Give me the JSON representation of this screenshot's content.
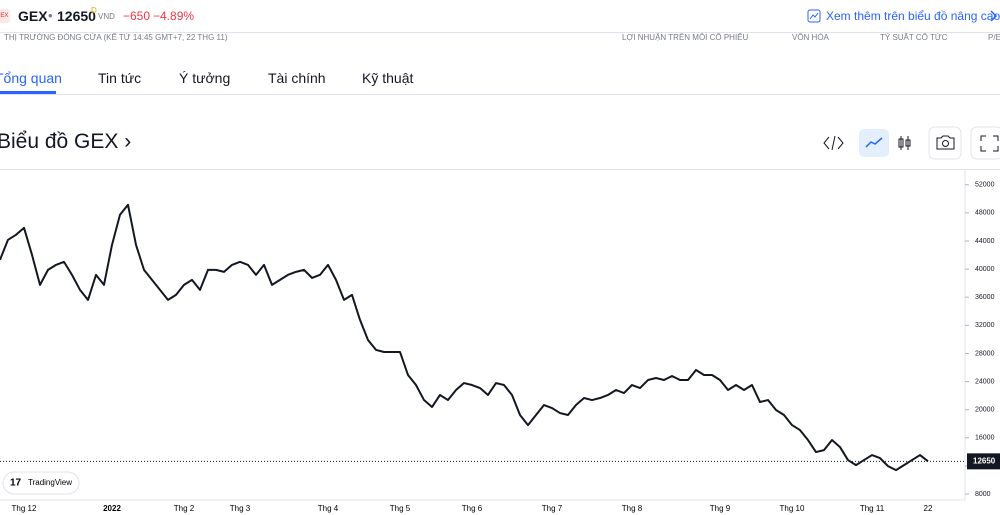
{
  "header": {
    "logo": "GEX",
    "symbol": "GEX",
    "dot": "•",
    "price": "12650",
    "price_sup": "D",
    "currency": "VND",
    "change": "−650",
    "change_pct": "−4.89%",
    "link": "Xem thêm trên biểu đồ nâng cao",
    "status": "THỊ TRƯỜNG ĐÓNG CỬA (KỂ TỪ 14:45 GMT+7, 22 THG 11)",
    "stats": [
      "LỢI NHUẬN TRÊN MỖI CỔ PHIẾU",
      "VỐN HÓA",
      "TỶ SUẤT CỔ TỨC",
      "P/E"
    ]
  },
  "tabs": [
    "Tổng quan",
    "Tin tức",
    "Ý tưởng",
    "Tài chính",
    "Kỹ thuật"
  ],
  "section_title": "Biểu đồ GEX ›",
  "badge": "TradingView",
  "chart_data": {
    "type": "line",
    "color": "#131722",
    "categories": [
      null,
      null,
      null,
      "Thg 12",
      null,
      null,
      null,
      null,
      null,
      null,
      null,
      null,
      null,
      null,
      "2022",
      null,
      null,
      null,
      null,
      null,
      null,
      null,
      null,
      "Thg 2",
      null,
      null,
      null,
      null,
      null,
      null,
      "Thg 3",
      null,
      null,
      null,
      null,
      null,
      null,
      null,
      null,
      null,
      null,
      "Thg 4",
      null,
      null,
      null,
      null,
      null,
      null,
      null,
      null,
      "Thg 5",
      null,
      null,
      null,
      null,
      null,
      null,
      null,
      null,
      "Thg 6",
      null,
      null,
      null,
      null,
      null,
      null,
      null,
      null,
      null,
      "Thg 7",
      null,
      null,
      null,
      null,
      null,
      null,
      null,
      null,
      null,
      "Thg 8",
      null,
      null,
      null,
      null,
      null,
      null,
      null,
      null,
      null,
      null,
      "Thg 9",
      null,
      null,
      null,
      null,
      null,
      null,
      null,
      null,
      "Thg 10",
      null,
      null,
      null,
      null,
      null,
      null,
      null,
      null,
      null,
      "Thg 11",
      null,
      null,
      null,
      null,
      null,
      null,
      "22"
    ],
    "values": [
      41320,
      44170,
      44880,
      45870,
      42030,
      37760,
      39890,
      40600,
      41030,
      39180,
      37040,
      35620,
      39180,
      37760,
      43450,
      47730,
      49150,
      43450,
      39890,
      38470,
      37040,
      35620,
      36330,
      37760,
      38470,
      37040,
      39890,
      39890,
      39610,
      40600,
      41030,
      40600,
      39180,
      40600,
      37760,
      38470,
      39180,
      39610,
      39890,
      38750,
      39180,
      40600,
      38470,
      35620,
      36330,
      32770,
      29920,
      28500,
      28210,
      28210,
      28210,
      24930,
      23510,
      21370,
      20380,
      22090,
      21370,
      22800,
      23790,
      23510,
      23080,
      22090,
      23790,
      23510,
      22090,
      19240,
      17810,
      19240,
      20660,
      20230,
      19520,
      19240,
      20660,
      21660,
      21370,
      21660,
      22090,
      22800,
      22370,
      23510,
      23080,
      24220,
      24510,
      24220,
      24790,
      24220,
      24220,
      25650,
      24930,
      24930,
      24220,
      22800,
      23510,
      22800,
      23510,
      21090,
      21370,
      19950,
      19240,
      17810,
      17100,
      15680,
      13970,
      14250,
      15680,
      14680,
      12830,
      12110,
      12830,
      13540,
      13110,
      11970,
      11400,
      12110,
      12830,
      13540,
      12650
    ],
    "ylim": [
      7150,
      54100
    ],
    "yticks": [
      8000,
      12000,
      16000,
      20000,
      24000,
      28000,
      32000,
      36000,
      40000,
      44000,
      48000,
      52000
    ]
  }
}
